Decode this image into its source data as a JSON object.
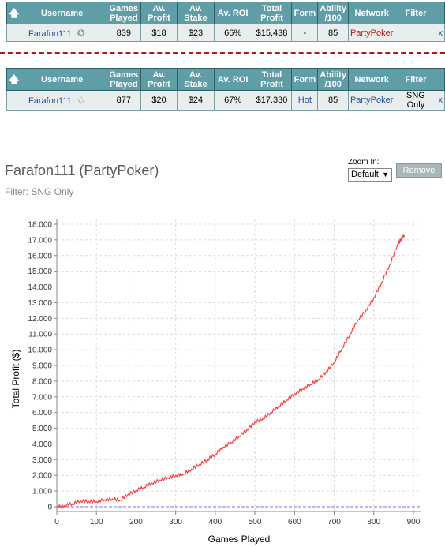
{
  "table_headers": {
    "username": "Username",
    "games_played": [
      "Games",
      "Played"
    ],
    "av_profit": [
      "Av.",
      "Profit"
    ],
    "av_stake": [
      "Av.",
      "Stake"
    ],
    "av_roi": "Av. ROI",
    "total_profit": [
      "Total",
      "Profit"
    ],
    "form": "Form",
    "ability": [
      "Ability",
      "/100"
    ],
    "network": "Network",
    "filter": "Filter"
  },
  "row1": {
    "username": "Farafon111",
    "games_played": "839",
    "av_profit": "$18",
    "av_stake": "$23",
    "av_roi": "66%",
    "total_profit": "$15,438",
    "form": "-",
    "ability": "85",
    "network": "PartyPoker",
    "filter": "",
    "remove": "x"
  },
  "row2": {
    "username": "Farafon111",
    "games_played": "877",
    "av_profit": "$20",
    "av_stake": "$24",
    "av_roi": "67%",
    "total_profit": "$17.330",
    "form": "Hot",
    "ability": "85",
    "network": "PartyPoker",
    "filter": "SNG Only",
    "remove": "x"
  },
  "graph_header": {
    "title": "Farafon111 (PartyPoker)",
    "filter": "Filter: SNG Only",
    "zoom_label": "Zoom In:",
    "zoom_value": "Default",
    "remove_label": "Remove"
  },
  "colors": {
    "header_bg": "#5f9ea7",
    "line": "#ff3b3b",
    "baseline": "#6f6fff"
  },
  "chart_data": {
    "type": "line",
    "title": "",
    "xlabel": "Games Played",
    "ylabel": "Total Profit ($)",
    "xlim": [
      0,
      920
    ],
    "ylim": [
      -300,
      18300
    ],
    "xticks": [
      "0",
      "100",
      "200",
      "300",
      "400",
      "500",
      "600",
      "700",
      "800",
      "900"
    ],
    "yticks": [
      "0",
      "1.000",
      "2.000",
      "3.000",
      "4.000",
      "5.000",
      "6.000",
      "7.000",
      "8.000",
      "9.000",
      "10.000",
      "11.000",
      "12.000",
      "13.000",
      "14.000",
      "15.000",
      "16.000",
      "17.000",
      "18.000"
    ],
    "grid": true,
    "series": [
      {
        "x": [
          0,
          20,
          40,
          60,
          80,
          100,
          120,
          140,
          160,
          180,
          200,
          220,
          240,
          260,
          280,
          300,
          320,
          340,
          360,
          380,
          400,
          420,
          440,
          460,
          480,
          500,
          520,
          540,
          560,
          580,
          600,
          620,
          640,
          660,
          680,
          700,
          720,
          740,
          760,
          780,
          800,
          820,
          840,
          860,
          870,
          877
        ],
        "y": [
          0,
          80,
          200,
          380,
          350,
          330,
          450,
          500,
          430,
          800,
          1050,
          1250,
          1500,
          1700,
          1850,
          2000,
          2100,
          2400,
          2700,
          3000,
          3350,
          3800,
          4100,
          4500,
          4900,
          5400,
          5600,
          6000,
          6400,
          6800,
          7200,
          7500,
          7800,
          8100,
          8600,
          9200,
          10100,
          11000,
          11900,
          12500,
          13300,
          14300,
          15400,
          16700,
          17100,
          17300
        ]
      }
    ]
  }
}
